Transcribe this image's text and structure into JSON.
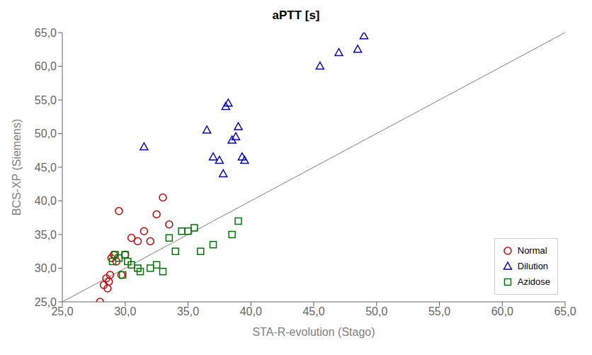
{
  "chart_data": {
    "type": "scatter",
    "title": "aPTT [s]",
    "x_label": "STA-R-evolution (Stago)",
    "y_label": "BCS-XP (Siemens)",
    "xlim": [
      25.0,
      65.0
    ],
    "ylim": [
      25.0,
      65.0
    ],
    "xticks": [
      {
        "value": 25.0,
        "label": "25,0"
      },
      {
        "value": 30.0,
        "label": "30,0"
      },
      {
        "value": 35.0,
        "label": "35,0"
      },
      {
        "value": 40.0,
        "label": "40,0"
      },
      {
        "value": 45.0,
        "label": "45,0"
      },
      {
        "value": 50.0,
        "label": "50,0"
      },
      {
        "value": 55.0,
        "label": "55,0"
      },
      {
        "value": 60.0,
        "label": "60,0"
      },
      {
        "value": 65.0,
        "label": "65,0"
      }
    ],
    "yticks": [
      {
        "value": 25.0,
        "label": "25,0"
      },
      {
        "value": 30.0,
        "label": "30,0"
      },
      {
        "value": 35.0,
        "label": "35,0"
      },
      {
        "value": 40.0,
        "label": "40,0"
      },
      {
        "value": 45.0,
        "label": "45,0"
      },
      {
        "value": 50.0,
        "label": "50,0"
      },
      {
        "value": 55.0,
        "label": "55,0"
      },
      {
        "value": 60.0,
        "label": "60,0"
      },
      {
        "value": 65.0,
        "label": "65,0"
      }
    ],
    "grid": false,
    "legend": "lower right",
    "series": [
      {
        "type": "line",
        "marker": "none",
        "color": "#808080",
        "x": [
          25.0,
          65.0
        ],
        "values": [
          25.0,
          65.0
        ]
      },
      {
        "name": "Normal",
        "marker": "circle",
        "color": "#cc0000",
        "x": [
          28.0,
          28.3,
          28.5,
          28.6,
          28.7,
          28.8,
          28.9,
          29.1,
          29.3,
          29.5,
          29.7,
          30.0,
          30.5,
          31.0,
          31.5,
          32.0,
          32.5,
          33.0,
          33.5
        ],
        "values": [
          25.0,
          27.5,
          28.5,
          27.0,
          28.0,
          29.0,
          31.5,
          32.0,
          31.0,
          38.5,
          29.0,
          32.0,
          34.5,
          34.0,
          35.5,
          34.0,
          38.0,
          40.5,
          36.5
        ]
      },
      {
        "name": "Dilution",
        "marker": "triangle",
        "color": "#0000cc",
        "x": [
          31.5,
          36.5,
          37.0,
          37.5,
          37.8,
          38.0,
          38.2,
          38.5,
          38.8,
          39.0,
          39.3,
          39.5,
          45.5,
          47.0,
          48.5,
          49.0
        ],
        "values": [
          48.0,
          50.5,
          46.5,
          46.0,
          44.0,
          54.0,
          54.5,
          49.0,
          49.5,
          51.0,
          46.5,
          46.0,
          60.0,
          62.0,
          62.5,
          64.5
        ]
      },
      {
        "name": "Azidose",
        "marker": "square",
        "color": "#007700",
        "x": [
          29.0,
          29.2,
          29.5,
          29.8,
          30.0,
          30.2,
          30.5,
          31.0,
          31.2,
          32.0,
          32.5,
          33.0,
          33.5,
          34.0,
          34.5,
          35.0,
          35.5,
          36.0,
          37.0,
          38.5,
          39.0
        ],
        "values": [
          31.0,
          32.0,
          31.5,
          29.0,
          32.0,
          31.0,
          30.5,
          30.0,
          29.5,
          30.0,
          30.5,
          29.5,
          34.5,
          32.5,
          35.5,
          35.5,
          36.0,
          32.5,
          33.5,
          35.0,
          37.0
        ]
      }
    ]
  }
}
